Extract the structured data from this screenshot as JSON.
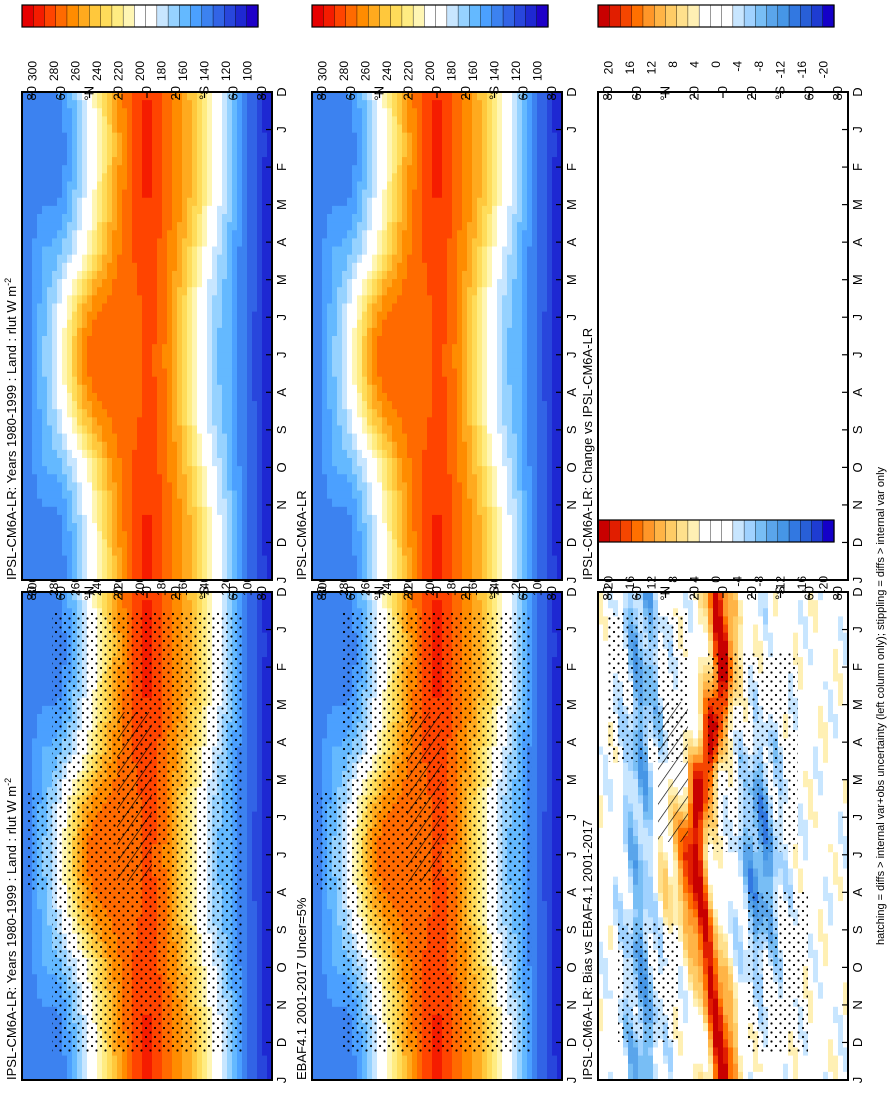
{
  "footer_note": "hatching = diffs > internal var+obs uncertainty (left column only); stippling = diffs > internal var only",
  "chart_data": [
    {
      "type": "heatmap",
      "title": "IPSL-CM6A-LR: Years 1980-1999 : Land : rlut W m",
      "title_superscript": "-2",
      "x_ticks": [
        "D",
        "J",
        "F",
        "M",
        "A",
        "M",
        "J",
        "J",
        "A",
        "S",
        "O",
        "N",
        "D",
        "J"
      ],
      "y_ticks": [
        "80",
        "60",
        "°N",
        "20",
        "0",
        "20",
        "°S",
        "60",
        "80"
      ],
      "overlay": "hatching and stippling",
      "colorbar": [
        "300",
        "280",
        "260",
        "240",
        "220",
        "200",
        "180",
        "160",
        "140",
        "120",
        "100"
      ],
      "field": "absolute"
    },
    {
      "type": "heatmap",
      "title": "IPSL-CM6A-LR: Years 1980-1999 : Land : rlut W m",
      "title_superscript": "-2",
      "x_ticks": [
        "D",
        "J",
        "F",
        "M",
        "A",
        "M",
        "J",
        "J",
        "A",
        "S",
        "O",
        "N",
        "D",
        "J"
      ],
      "y_ticks": [
        "80",
        "60",
        "°N",
        "20",
        "0",
        "20",
        "°S",
        "60",
        "80"
      ],
      "overlay": "none",
      "colorbar": [
        "300",
        "280",
        "260",
        "240",
        "220",
        "200",
        "180",
        "160",
        "140",
        "120",
        "100"
      ],
      "field": "absolute"
    },
    {
      "type": "heatmap",
      "title": "EBAF4.1 2001-2017 Uncer=5%",
      "title_superscript": "",
      "x_ticks": [
        "D",
        "J",
        "F",
        "M",
        "A",
        "M",
        "J",
        "J",
        "A",
        "S",
        "O",
        "N",
        "D",
        "J"
      ],
      "y_ticks": [
        "80",
        "60",
        "°N",
        "20",
        "0",
        "20",
        "°S",
        "60",
        "80"
      ],
      "overlay": "hatching and stippling",
      "colorbar": [
        "300",
        "280",
        "260",
        "240",
        "220",
        "200",
        "180",
        "160",
        "140",
        "120",
        "100"
      ],
      "field": "absolute"
    },
    {
      "type": "heatmap",
      "title": "IPSL-CM6A-LR",
      "title_superscript": "",
      "x_ticks": [
        "D",
        "J",
        "F",
        "M",
        "A",
        "M",
        "J",
        "J",
        "A",
        "S",
        "O",
        "N",
        "D",
        "J"
      ],
      "y_ticks": [
        "80",
        "60",
        "°N",
        "20",
        "0",
        "20",
        "°S",
        "60",
        "80"
      ],
      "overlay": "none",
      "colorbar": [
        "300",
        "280",
        "260",
        "240",
        "220",
        "200",
        "180",
        "160",
        "140",
        "120",
        "100"
      ],
      "field": "absolute"
    },
    {
      "type": "heatmap",
      "title": "IPSL-CM6A-LR: Bias vs EBAF4.1 2001-2017",
      "title_superscript": "",
      "x_ticks": [
        "D",
        "J",
        "F",
        "M",
        "A",
        "M",
        "J",
        "J",
        "A",
        "S",
        "O",
        "N",
        "D",
        "J"
      ],
      "y_ticks": [
        "80",
        "60",
        "°N",
        "20",
        "0",
        "20",
        "°S",
        "60",
        "80"
      ],
      "overlay": "hatching and stippling",
      "colorbar": [
        "20",
        "16",
        "12",
        "8",
        "4",
        "0",
        "-4",
        "-8",
        "-12",
        "-16",
        "-20"
      ],
      "field": "bias"
    },
    {
      "type": "heatmap",
      "title": "IPSL-CM6A-LR: Change vs IPSL-CM6A-LR",
      "title_superscript": "",
      "x_ticks": [
        "D",
        "J",
        "F",
        "M",
        "A",
        "M",
        "J",
        "J",
        "A",
        "S",
        "O",
        "N",
        "D",
        "J"
      ],
      "y_ticks": [
        "80",
        "60",
        "°N",
        "20",
        "0",
        "20",
        "°S",
        "60",
        "80"
      ],
      "overlay": "none",
      "colorbar": [
        "20",
        "16",
        "12",
        "8",
        "4",
        "0",
        "-4",
        "-8",
        "-12",
        "-16",
        "-20"
      ],
      "field": "empty"
    }
  ],
  "colors": {
    "warm_scale": [
      "#e60000",
      "#f51c00",
      "#ff4400",
      "#ff6a00",
      "#ff8c00",
      "#ffaa1e",
      "#ffc83c",
      "#ffdc5a",
      "#ffec82",
      "#fff6b4",
      "#ffffff",
      "#ffffff",
      "#c8e6ff",
      "#96d2ff",
      "#64b9ff",
      "#4ba0ff",
      "#3c82f0",
      "#3264e6",
      "#2846dc",
      "#1e28d2",
      "#1e00c8"
    ],
    "diff_scale": [
      "#c80000",
      "#e11e00",
      "#f54600",
      "#ff7000",
      "#ff9628",
      "#ffb446",
      "#ffcc66",
      "#ffe08c",
      "#fff0b4",
      "#ffffff",
      "#ffffff",
      "#ffffff",
      "#c8e6ff",
      "#a0d2ff",
      "#78bef5",
      "#5aa5eb",
      "#4696e6",
      "#3278e1",
      "#285fd7",
      "#1e3cd2",
      "#1400c8"
    ]
  }
}
